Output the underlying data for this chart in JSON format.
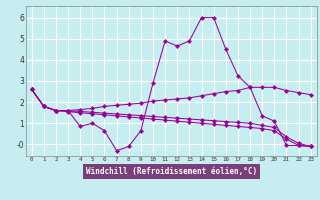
{
  "xlabel": "Windchill (Refroidissement éolien,°C)",
  "background_color": "#c6eef0",
  "grid_color": "#ffffff",
  "line_color": "#990099",
  "axis_bar_color": "#7a3f7a",
  "xlim": [
    -0.5,
    23.5
  ],
  "ylim": [
    -0.55,
    6.55
  ],
  "xticks": [
    0,
    1,
    2,
    3,
    4,
    5,
    6,
    7,
    8,
    9,
    10,
    11,
    12,
    13,
    14,
    15,
    16,
    17,
    18,
    19,
    20,
    21,
    22,
    23
  ],
  "yticks": [
    0,
    1,
    2,
    3,
    4,
    5,
    6
  ],
  "ytick_labels": [
    "-0",
    "1",
    "2",
    "3",
    "4",
    "5",
    "6"
  ],
  "line1_x": [
    0,
    1,
    2,
    3,
    4,
    5,
    6,
    7,
    8,
    9,
    10,
    11,
    12,
    13,
    14,
    15,
    16,
    17,
    18,
    19,
    20,
    21,
    22,
    23
  ],
  "line1_y": [
    2.6,
    1.8,
    1.6,
    1.6,
    0.85,
    1.0,
    0.65,
    -0.3,
    -0.1,
    0.65,
    2.9,
    4.9,
    4.65,
    4.9,
    6.0,
    6.0,
    4.5,
    3.25,
    2.7,
    1.35,
    1.1,
    -0.05,
    -0.05,
    -0.1
  ],
  "line2_x": [
    0,
    1,
    2,
    3,
    4,
    5,
    6,
    7,
    8,
    9,
    10,
    11,
    12,
    13,
    14,
    15,
    16,
    17,
    18,
    19,
    20,
    21,
    22,
    23
  ],
  "line2_y": [
    2.6,
    1.8,
    1.6,
    1.6,
    1.65,
    1.7,
    1.8,
    1.85,
    1.9,
    1.95,
    2.05,
    2.1,
    2.15,
    2.2,
    2.3,
    2.4,
    2.5,
    2.55,
    2.7,
    2.7,
    2.7,
    2.55,
    2.45,
    2.35
  ],
  "line3_x": [
    0,
    1,
    2,
    3,
    4,
    5,
    6,
    7,
    8,
    9,
    10,
    11,
    12,
    13,
    14,
    15,
    16,
    17,
    18,
    19,
    20,
    21,
    22,
    23
  ],
  "line3_y": [
    2.6,
    1.8,
    1.6,
    1.55,
    1.5,
    1.45,
    1.4,
    1.35,
    1.3,
    1.25,
    1.2,
    1.15,
    1.1,
    1.05,
    1.0,
    0.95,
    0.9,
    0.85,
    0.8,
    0.75,
    0.65,
    0.25,
    -0.05,
    -0.1
  ],
  "line4_x": [
    0,
    1,
    2,
    3,
    4,
    5,
    6,
    7,
    8,
    9,
    10,
    11,
    12,
    13,
    14,
    15,
    16,
    17,
    18,
    19,
    20,
    21,
    22,
    23
  ],
  "line4_y": [
    2.6,
    1.8,
    1.6,
    1.58,
    1.56,
    1.52,
    1.48,
    1.44,
    1.4,
    1.36,
    1.32,
    1.28,
    1.24,
    1.2,
    1.16,
    1.12,
    1.08,
    1.04,
    1.0,
    0.9,
    0.8,
    0.35,
    0.05,
    -0.1
  ]
}
